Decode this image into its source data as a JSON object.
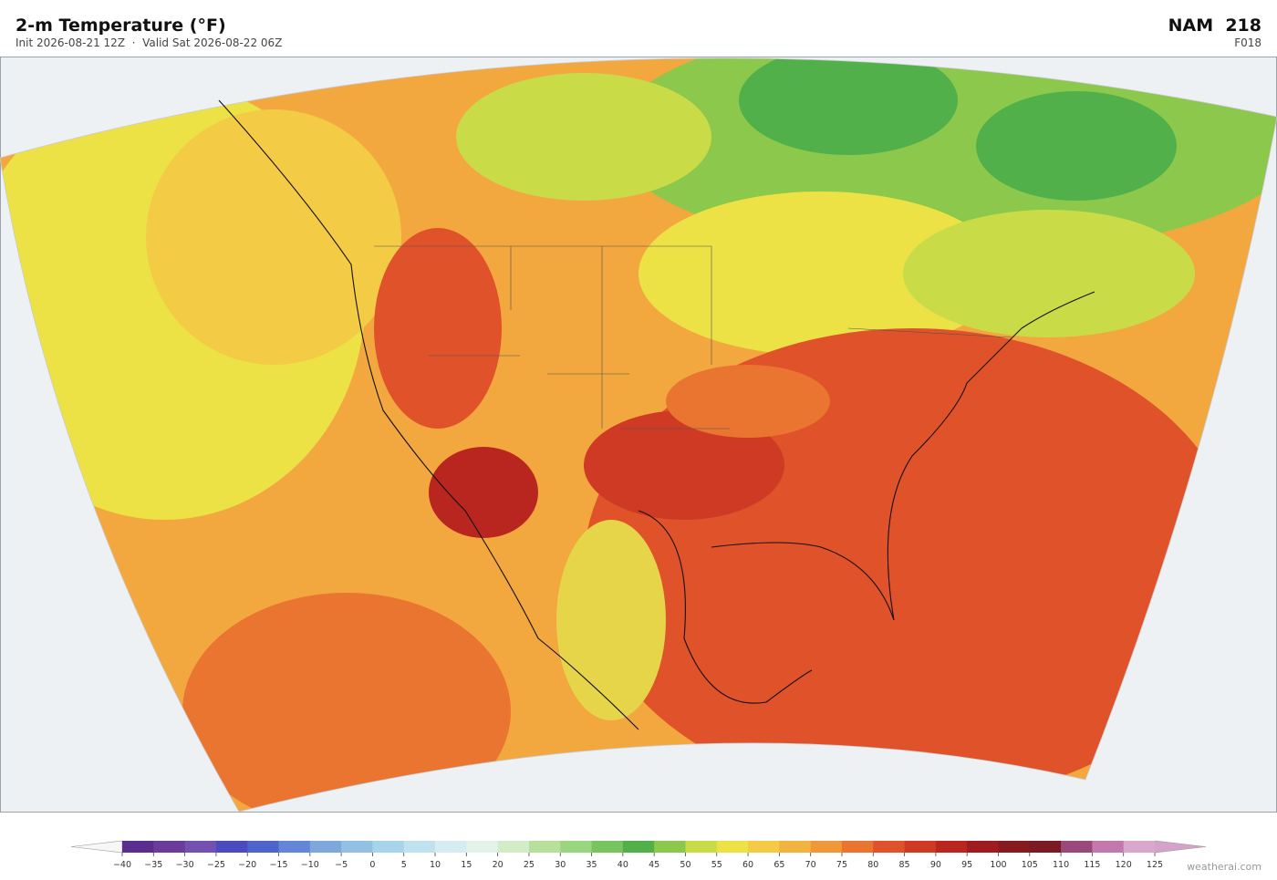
{
  "header": {
    "title": "2-m Temperature  (°F)",
    "subtitle": "Init 2026-08-21 12Z  ·  Valid Sat 2026-08-22 06Z",
    "model": "NAM  218",
    "forecast_hour": "F018"
  },
  "colorbar": {
    "ticks": [
      {
        "value": -40,
        "label": "−40"
      },
      {
        "value": -35,
        "label": "−35"
      },
      {
        "value": -30,
        "label": "−30"
      },
      {
        "value": -25,
        "label": "−25"
      },
      {
        "value": -20,
        "label": "−20"
      },
      {
        "value": -15,
        "label": "−15"
      },
      {
        "value": -10,
        "label": "−10"
      },
      {
        "value": -5,
        "label": "−5"
      },
      0,
      5,
      10,
      15,
      20,
      25,
      30,
      35,
      40,
      45,
      50,
      55,
      60,
      65,
      70,
      75,
      80,
      85,
      90,
      95,
      100,
      105,
      110,
      115,
      120,
      125
    ],
    "colors": [
      "#5b2d8e",
      "#6a3d9a",
      "#7450b0",
      "#4a4bbf",
      "#4f63cc",
      "#6586d6",
      "#7ea7dc",
      "#93c1e4",
      "#a8d4ea",
      "#c0e2ef",
      "#d6ecf1",
      "#e4f3ea",
      "#d3ecc8",
      "#b8e09c",
      "#9ad57f",
      "#78c45e",
      "#52b04a",
      "#8cc84b",
      "#c9dc48",
      "#ece145",
      "#f3cb45",
      "#f2b440",
      "#ef9838",
      "#ea7530",
      "#e0522a",
      "#cf3a24",
      "#b8261f",
      "#9e1c1f",
      "#871a1e",
      "#7a1a24",
      "#9a4a7a",
      "#c479ad",
      "#d9a6cc"
    ],
    "under_color": "#f7f7f7",
    "over_color": "#d6a2cc"
  },
  "watermark": "weatherai.com"
}
